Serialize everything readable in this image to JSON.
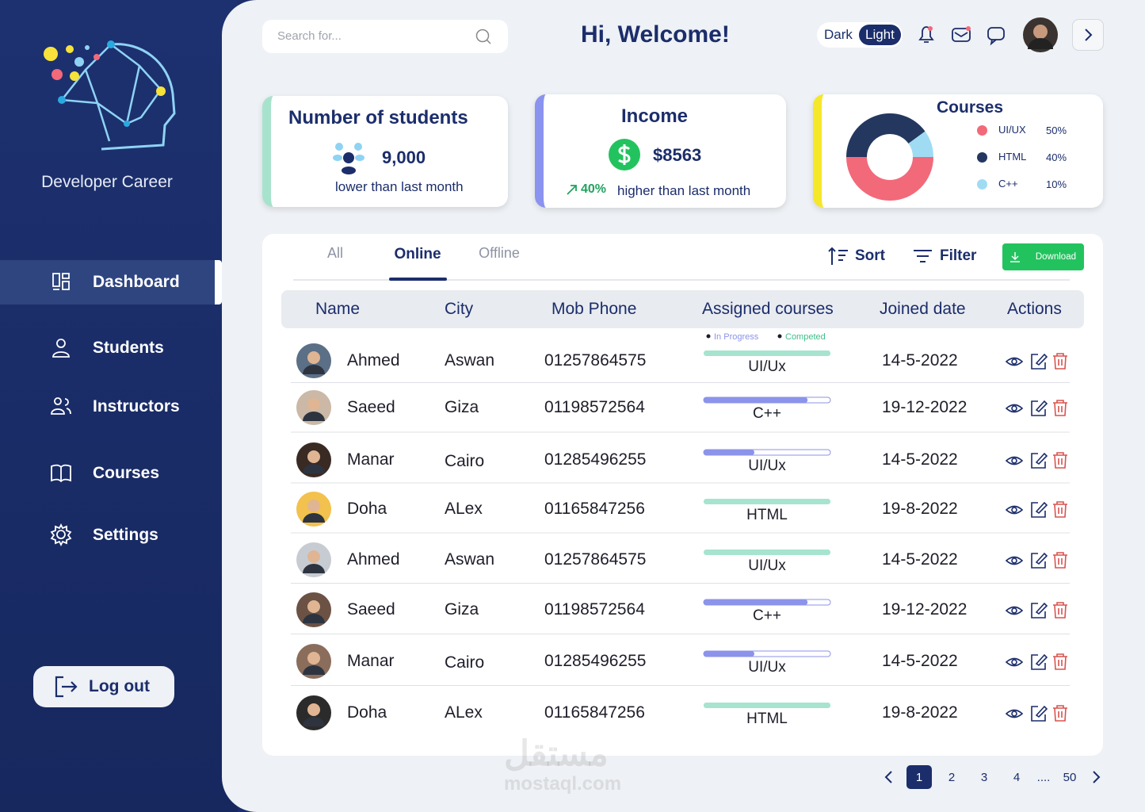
{
  "sidebar": {
    "brand": "Developer Career",
    "nav": [
      "Dashboard",
      "Students",
      "Instructors",
      "Courses",
      "Settings"
    ],
    "active": 0,
    "logout": "Log out"
  },
  "header": {
    "search_placeholder": "Search for...",
    "greeting": "Hi, Welcome!",
    "theme": [
      "Dark",
      "Light"
    ],
    "theme_active": 1
  },
  "cards": {
    "students": {
      "title": "Number of students",
      "value": "9,000",
      "note": "lower than last month"
    },
    "income": {
      "title": "Income",
      "value": "$8563",
      "change": "40%",
      "note": "higher than last month"
    },
    "courses": {
      "title": "Courses",
      "items": [
        {
          "name": "UI/UX",
          "value": 50,
          "value_label": "50%",
          "color": "#f2697a"
        },
        {
          "name": "HTML",
          "value": 40,
          "value_label": "40%",
          "color": "#24375f"
        },
        {
          "name": "C++",
          "value": 10,
          "value_label": "10%",
          "color": "#9fdcf3"
        }
      ]
    }
  },
  "table": {
    "tabs": [
      "All",
      "Online",
      "Offline"
    ],
    "active_tab": 1,
    "sort": "Sort",
    "filter": "Filter",
    "download": "Download",
    "columns": [
      "Name",
      "City",
      "Mob Phone",
      "Assigned courses",
      "Joined date",
      "Actions"
    ],
    "legend": [
      "In Progress",
      "Competed"
    ],
    "rows": [
      {
        "name": "Ahmed",
        "city": "Aswan",
        "phone": "01257864575",
        "course": "UI/Ux",
        "progress": 100,
        "joined": "14-5-2022"
      },
      {
        "name": "Saeed",
        "city": "Giza",
        "phone": "01198572564",
        "course": "C++",
        "progress": 82,
        "joined": "19-12-2022"
      },
      {
        "name": "Manar",
        "city": "Cairo",
        "phone": "01285496255",
        "course": "UI/Ux",
        "progress": 40,
        "joined": "14-5-2022"
      },
      {
        "name": "Doha",
        "city": "ALex",
        "phone": "01165847256",
        "course": "HTML",
        "progress": 100,
        "joined": "19-8-2022"
      },
      {
        "name": "Ahmed",
        "city": "Aswan",
        "phone": "01257864575",
        "course": "UI/Ux",
        "progress": 100,
        "joined": "14-5-2022"
      },
      {
        "name": "Saeed",
        "city": "Giza",
        "phone": "01198572564",
        "course": "C++",
        "progress": 82,
        "joined": "19-12-2022"
      },
      {
        "name": "Manar",
        "city": "Cairo",
        "phone": "01285496255",
        "course": "UI/Ux",
        "progress": 40,
        "joined": "14-5-2022"
      },
      {
        "name": "Doha",
        "city": "ALex",
        "phone": "01165847256",
        "course": "HTML",
        "progress": 100,
        "joined": "19-8-2022"
      }
    ]
  },
  "pagination": {
    "pages": [
      "1",
      "2",
      "3",
      "4",
      "....",
      "50"
    ],
    "current": 0
  }
}
